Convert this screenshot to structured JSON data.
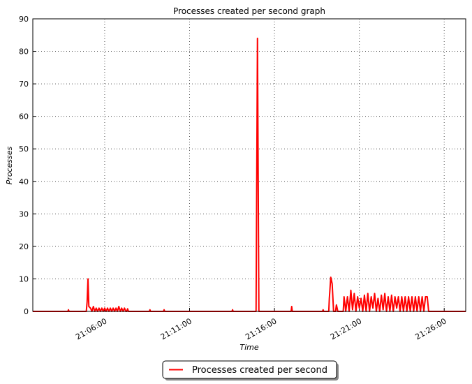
{
  "chart_data": {
    "type": "line",
    "title": "Processes created per second graph",
    "x_label": "Time",
    "y_label": "Processes",
    "x": [
      "21:01:46",
      "21:03:50",
      "21:03:52",
      "21:03:54",
      "21:04:55",
      "21:04:58",
      "21:05:01",
      "21:05:04",
      "21:05:10",
      "21:05:15",
      "21:05:20",
      "21:05:25",
      "21:05:30",
      "21:05:35",
      "21:05:40",
      "21:05:45",
      "21:05:50",
      "21:05:55",
      "21:06:00",
      "21:06:05",
      "21:06:10",
      "21:06:15",
      "21:06:20",
      "21:06:25",
      "21:06:30",
      "21:06:35",
      "21:06:40",
      "21:06:45",
      "21:06:50",
      "21:06:55",
      "21:07:00",
      "21:07:05",
      "21:07:10",
      "21:07:15",
      "21:07:18",
      "21:07:21",
      "21:07:24",
      "21:08:38",
      "21:08:40",
      "21:08:42",
      "21:09:28",
      "21:09:30",
      "21:09:32",
      "21:13:30",
      "21:13:32",
      "21:13:34",
      "21:14:55",
      "21:15:00",
      "21:15:05",
      "21:16:59",
      "21:17:01",
      "21:17:03",
      "21:18:50",
      "21:18:52",
      "21:18:54",
      "21:19:12",
      "21:19:14",
      "21:19:19",
      "21:19:24",
      "21:19:29",
      "21:19:36",
      "21:19:39",
      "21:19:44",
      "21:20:03",
      "21:20:06",
      "21:20:12",
      "21:20:18",
      "21:20:24",
      "21:20:30",
      "21:20:36",
      "21:20:42",
      "21:20:48",
      "21:20:54",
      "21:21:00",
      "21:21:06",
      "21:21:12",
      "21:21:18",
      "21:21:24",
      "21:21:30",
      "21:21:36",
      "21:21:42",
      "21:21:48",
      "21:21:54",
      "21:22:00",
      "21:22:06",
      "21:22:12",
      "21:22:18",
      "21:22:24",
      "21:22:30",
      "21:22:36",
      "21:22:42",
      "21:22:48",
      "21:22:54",
      "21:23:00",
      "21:23:06",
      "21:23:12",
      "21:23:18",
      "21:23:24",
      "21:23:30",
      "21:23:36",
      "21:23:42",
      "21:23:48",
      "21:23:54",
      "21:24:00",
      "21:24:06",
      "21:24:12",
      "21:24:18",
      "21:24:24",
      "21:24:30",
      "21:24:36",
      "21:24:42",
      "21:24:48",
      "21:24:54",
      "21:25:00",
      "21:25:05",
      "21:27:16"
    ],
    "series": [
      {
        "name": "Processes created per second",
        "color": "#ff0000",
        "values": [
          0,
          0,
          0.5,
          0,
          0,
          3,
          10,
          1.5,
          1,
          0,
          1.5,
          0,
          1,
          0,
          1,
          0,
          1,
          0,
          1,
          0,
          1,
          0,
          1,
          0,
          1,
          0,
          1,
          0,
          1.5,
          0,
          1,
          0,
          1,
          0,
          0,
          0.8,
          0,
          0,
          0.5,
          0,
          0,
          0.5,
          0,
          0,
          0.5,
          0,
          0,
          84,
          0,
          0,
          1.5,
          0,
          0,
          0.5,
          0,
          0,
          4,
          10.5,
          8.5,
          0,
          0,
          2,
          0,
          0,
          4.5,
          0,
          4.5,
          0,
          6.5,
          0.5,
          5.5,
          0,
          4.5,
          1,
          4,
          0,
          5,
          0,
          5.5,
          0,
          4.5,
          1,
          5.5,
          0,
          4,
          0,
          5,
          0.5,
          5.5,
          0,
          4.5,
          0,
          5,
          0,
          4.5,
          1,
          4.5,
          0,
          4.5,
          0,
          4.5,
          0,
          4.5,
          0,
          4.5,
          0,
          4.5,
          0,
          4.5,
          0,
          4.5,
          0,
          4.5,
          4.5,
          0,
          0
        ]
      }
    ],
    "xlim": [
      "21:01:46",
      "21:27:16"
    ],
    "xticks": [
      "21:06:00",
      "21:11:00",
      "21:16:00",
      "21:21:00",
      "21:26:00"
    ],
    "ylim": [
      0,
      90
    ],
    "yticks": [
      0,
      10,
      20,
      30,
      40,
      50,
      60,
      70,
      80,
      90
    ],
    "grid": true,
    "legend": "bottom"
  }
}
